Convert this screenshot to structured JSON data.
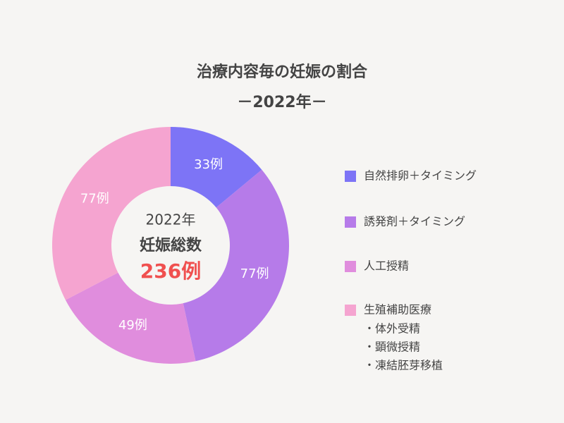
{
  "chart_data": {
    "type": "donut",
    "title": "治療内容毎の妊娠の割合",
    "subtitle": "－2022年－",
    "categories": [
      "自然排卵＋タイミング",
      "誘発剤＋タイミング",
      "人工授精",
      "生殖補助医療"
    ],
    "values": [
      33,
      77,
      49,
      77
    ],
    "value_labels": [
      "33例",
      "77例",
      "49例",
      "77例"
    ],
    "colors": [
      "#7d74f6",
      "#b67be9",
      "#e08ddd",
      "#f5a4d0"
    ],
    "legend_notes": [
      "・体外受精",
      "・顕微授精",
      "・凍結胚芽移植"
    ],
    "center_lines": [
      "2022年",
      "妊娠総数"
    ],
    "center_total": "236例"
  }
}
